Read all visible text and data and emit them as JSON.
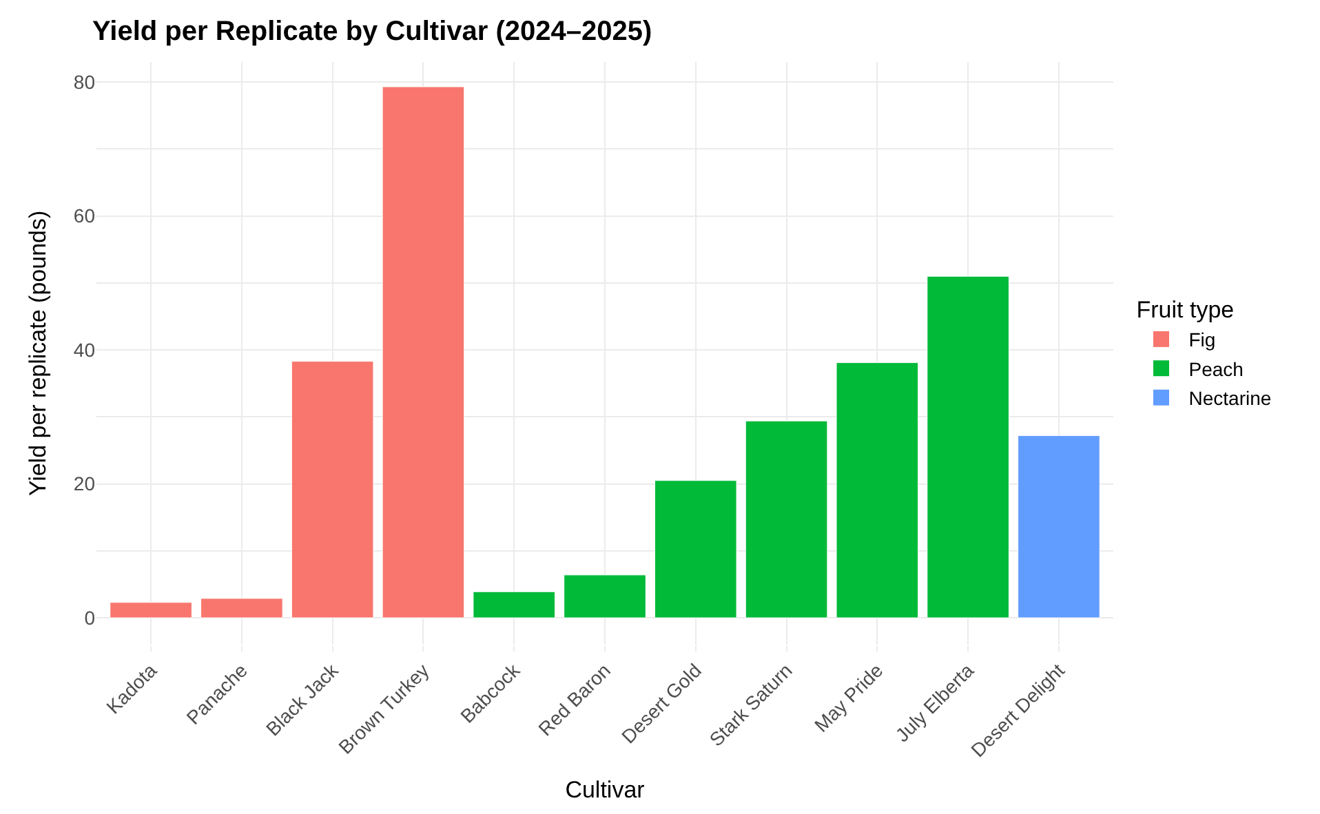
{
  "chart_data": {
    "type": "bar",
    "title": "Yield per Replicate by Cultivar (2024–2025)",
    "xlabel": "Cultivar",
    "ylabel": "Yield per replicate (pounds)",
    "legend_title": "Fruit type",
    "categories": [
      "Kadota",
      "Panache",
      "Black Jack",
      "Brown Turkey",
      "Babcock",
      "Red Baron",
      "Desert Gold",
      "Stark Saturn",
      "May Pride",
      "July Elberta",
      "Desert Delight"
    ],
    "series": [
      {
        "name": "Fig",
        "color": "#f8766d",
        "values": [
          2.3,
          2.9,
          38.3,
          79.3,
          null,
          null,
          null,
          null,
          null,
          null,
          null
        ]
      },
      {
        "name": "Peach",
        "color": "#00ba38",
        "values": [
          null,
          null,
          null,
          null,
          3.9,
          6.4,
          20.5,
          29.4,
          38.1,
          51.0,
          null
        ]
      },
      {
        "name": "Nectarine",
        "color": "#619cff",
        "values": [
          null,
          null,
          null,
          null,
          null,
          null,
          null,
          null,
          null,
          null,
          27.2
        ]
      }
    ],
    "ylim": [
      -4,
      83
    ],
    "yticks": [
      0,
      {
        "value": 10,
        "label": null
      },
      20,
      {
        "value": 30,
        "label": null
      },
      40,
      {
        "value": 50,
        "label": null
      },
      60,
      {
        "value": 70,
        "label": null
      },
      80
    ],
    "grid": true,
    "legend": "right"
  }
}
